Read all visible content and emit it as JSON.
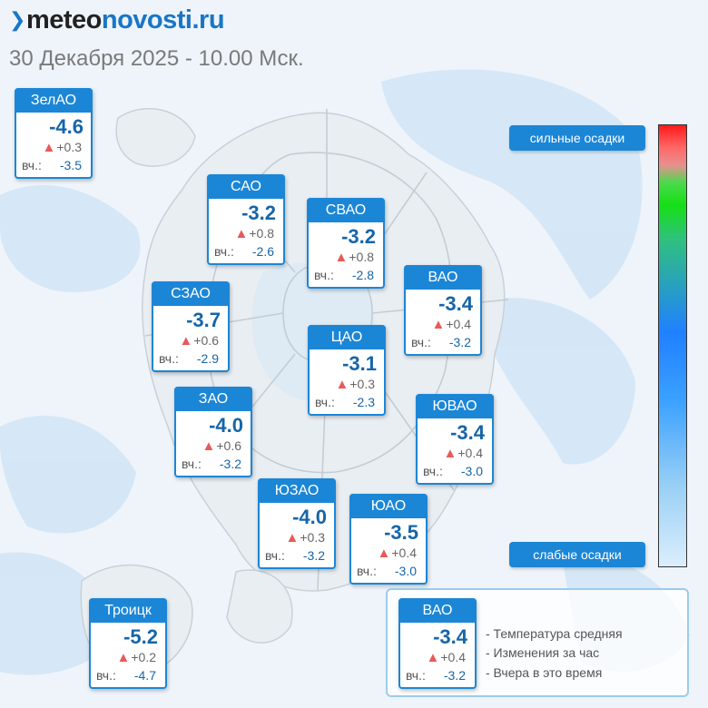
{
  "header": {
    "brand_prefix": "meteo",
    "brand_suffix": "novosti.ru",
    "timestamp": "30 Декабря 2025 - 10.00 Мск."
  },
  "colors": {
    "accent": "#1c86d6",
    "temp_text": "#1665a8",
    "rise_arrow": "#e85a5a"
  },
  "districts": [
    {
      "id": "zelao",
      "name": "ЗелАО",
      "temp": "-4.6",
      "delta": "+0.3",
      "yesterday_label": "вч.:",
      "yesterday": "-3.5"
    },
    {
      "id": "sao",
      "name": "САО",
      "temp": "-3.2",
      "delta": "+0.8",
      "yesterday_label": "вч.:",
      "yesterday": "-2.6"
    },
    {
      "id": "svao",
      "name": "СВАО",
      "temp": "-3.2",
      "delta": "+0.8",
      "yesterday_label": "вч.:",
      "yesterday": "-2.8"
    },
    {
      "id": "szao",
      "name": "СЗАО",
      "temp": "-3.7",
      "delta": "+0.6",
      "yesterday_label": "вч.:",
      "yesterday": "-2.9"
    },
    {
      "id": "vao",
      "name": "ВАО",
      "temp": "-3.4",
      "delta": "+0.4",
      "yesterday_label": "вч.:",
      "yesterday": "-3.2"
    },
    {
      "id": "cao",
      "name": "ЦАО",
      "temp": "-3.1",
      "delta": "+0.3",
      "yesterday_label": "вч.:",
      "yesterday": "-2.3"
    },
    {
      "id": "zao",
      "name": "ЗАО",
      "temp": "-4.0",
      "delta": "+0.6",
      "yesterday_label": "вч.:",
      "yesterday": "-3.2"
    },
    {
      "id": "yuvao",
      "name": "ЮВАО",
      "temp": "-3.4",
      "delta": "+0.4",
      "yesterday_label": "вч.:",
      "yesterday": "-3.0"
    },
    {
      "id": "yuzao",
      "name": "ЮЗАО",
      "temp": "-4.0",
      "delta": "+0.3",
      "yesterday_label": "вч.:",
      "yesterday": "-3.2"
    },
    {
      "id": "yuao",
      "name": "ЮАО",
      "temp": "-3.5",
      "delta": "+0.4",
      "yesterday_label": "вч.:",
      "yesterday": "-3.0"
    },
    {
      "id": "troick",
      "name": "Троицк",
      "temp": "-5.2",
      "delta": "+0.2",
      "yesterday_label": "вч.:",
      "yesterday": "-4.7"
    }
  ],
  "scale": {
    "top_label": "сильные осадки",
    "bottom_label": "слабые осадки"
  },
  "legend": {
    "sample": {
      "name": "ВАО",
      "temp": "-3.4",
      "delta": "+0.4",
      "yesterday_label": "вч.:",
      "yesterday": "-3.2"
    },
    "items": [
      "- Температура средняя",
      "- Изменения за час",
      "- Вчера в это время"
    ]
  }
}
